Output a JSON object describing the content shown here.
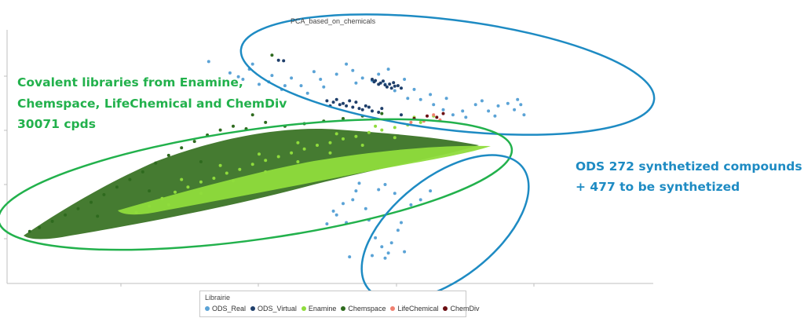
{
  "chart_data": {
    "type": "scatter",
    "title": "PCA_based_on_chemicals",
    "xlabel": "",
    "ylabel": "",
    "xlim": [
      0,
      100
    ],
    "ylim": [
      0,
      100
    ],
    "grid": false,
    "legend": {
      "title": "Librairie",
      "placement": "bottom-center"
    },
    "series": [
      {
        "name": "ODS_Real",
        "color": "#5ba3d6",
        "points": [
          [
            31.2,
            87.5
          ],
          [
            34.5,
            83.0
          ],
          [
            35.8,
            81.5
          ],
          [
            36.5,
            80.5
          ],
          [
            39.0,
            78.5
          ],
          [
            40.5,
            79.5
          ],
          [
            42.5,
            76.5
          ],
          [
            44.0,
            81.0
          ],
          [
            45.5,
            78.0
          ],
          [
            47.5,
            83.5
          ],
          [
            49.0,
            77.5
          ],
          [
            51.0,
            82.5
          ],
          [
            52.5,
            86.5
          ],
          [
            53.5,
            84.0
          ],
          [
            55.0,
            81.0
          ],
          [
            56.5,
            80.0
          ],
          [
            58.5,
            78.5
          ],
          [
            60.0,
            76.0
          ],
          [
            62.0,
            73.0
          ],
          [
            64.0,
            72.5
          ],
          [
            66.0,
            70.5
          ],
          [
            67.5,
            68.5
          ],
          [
            69.0,
            66.5
          ],
          [
            70.5,
            68.0
          ],
          [
            72.5,
            70.5
          ],
          [
            74.5,
            68.0
          ],
          [
            76.0,
            70.0
          ],
          [
            77.5,
            71.0
          ],
          [
            78.5,
            68.5
          ],
          [
            79.5,
            70.5
          ],
          [
            80.0,
            66.5
          ],
          [
            79.0,
            72.5
          ],
          [
            37.5,
            84.5
          ],
          [
            41.0,
            82.0
          ],
          [
            38.0,
            86.5
          ],
          [
            46.5,
            75.0
          ],
          [
            59.0,
            84.5
          ],
          [
            61.5,
            80.5
          ],
          [
            63.0,
            76.5
          ],
          [
            65.5,
            74.5
          ],
          [
            68.0,
            73.0
          ],
          [
            73.5,
            72.0
          ],
          [
            57.5,
            82.5
          ],
          [
            54.0,
            79.0
          ],
          [
            48.5,
            80.5
          ],
          [
            43.0,
            78.0
          ],
          [
            75.5,
            66.0
          ],
          [
            71.0,
            65.5
          ],
          [
            54.5,
            39.5
          ],
          [
            57.5,
            37.0
          ],
          [
            58.5,
            39.0
          ],
          [
            60.0,
            35.5
          ],
          [
            62.5,
            31.0
          ],
          [
            64.0,
            33.0
          ],
          [
            65.5,
            36.5
          ],
          [
            49.5,
            23.5
          ],
          [
            51.0,
            27.0
          ],
          [
            52.5,
            24.0
          ],
          [
            53.5,
            33.0
          ],
          [
            55.5,
            29.5
          ],
          [
            56.0,
            25.0
          ],
          [
            57.0,
            18.0
          ],
          [
            58.0,
            14.5
          ],
          [
            59.5,
            16.0
          ],
          [
            60.5,
            21.0
          ],
          [
            61.0,
            24.0
          ],
          [
            59.0,
            12.0
          ],
          [
            56.5,
            11.0
          ],
          [
            53.0,
            10.5
          ],
          [
            50.5,
            28.5
          ],
          [
            52.0,
            31.5
          ],
          [
            54.0,
            36.5
          ],
          [
            61.5,
            12.5
          ],
          [
            58.5,
            10.0
          ]
        ]
      },
      {
        "name": "ODS_Virtual",
        "color": "#1f3f6b",
        "points": [
          [
            57.0,
            80.0
          ],
          [
            57.8,
            79.0
          ],
          [
            58.5,
            78.3
          ],
          [
            59.2,
            78.6
          ],
          [
            60.0,
            77.8
          ],
          [
            59.5,
            77.0
          ],
          [
            58.2,
            79.8
          ],
          [
            57.5,
            78.5
          ],
          [
            60.5,
            78.0
          ],
          [
            56.8,
            79.5
          ],
          [
            58.8,
            77.5
          ],
          [
            59.8,
            79.2
          ],
          [
            61.0,
            77.0
          ],
          [
            56.5,
            80.5
          ],
          [
            49.5,
            72.0
          ],
          [
            50.5,
            71.5
          ],
          [
            51.5,
            70.5
          ],
          [
            52.5,
            70.0
          ],
          [
            53.5,
            69.5
          ],
          [
            54.5,
            69.0
          ],
          [
            55.5,
            70.0
          ],
          [
            56.5,
            68.0
          ],
          [
            57.5,
            67.5
          ],
          [
            51.0,
            72.5
          ],
          [
            52.0,
            71.0
          ],
          [
            54.0,
            71.5
          ],
          [
            55.0,
            68.5
          ],
          [
            53.0,
            72.0
          ],
          [
            56.0,
            69.5
          ],
          [
            50.0,
            70.0
          ],
          [
            58.0,
            69.0
          ],
          [
            61.0,
            66.5
          ],
          [
            42.0,
            88.0
          ],
          [
            42.8,
            87.8
          ]
        ]
      },
      {
        "name": "Enamine",
        "color": "#8fdc3c",
        "points": [
          [
            22.0,
            30.5
          ],
          [
            24.0,
            33.5
          ],
          [
            26.0,
            36.0
          ],
          [
            28.0,
            38.0
          ],
          [
            30.0,
            40.0
          ],
          [
            32.0,
            41.5
          ],
          [
            34.0,
            43.5
          ],
          [
            36.0,
            45.0
          ],
          [
            38.0,
            47.0
          ],
          [
            40.0,
            48.5
          ],
          [
            42.0,
            50.0
          ],
          [
            44.0,
            51.5
          ],
          [
            46.0,
            53.0
          ],
          [
            48.0,
            54.5
          ],
          [
            50.0,
            55.5
          ],
          [
            52.0,
            57.0
          ],
          [
            54.0,
            58.0
          ],
          [
            56.0,
            59.5
          ],
          [
            58.0,
            60.5
          ],
          [
            60.0,
            61.5
          ],
          [
            62.0,
            62.5
          ],
          [
            64.0,
            63.5
          ],
          [
            20.0,
            28.0
          ],
          [
            25.0,
            31.0
          ],
          [
            30.0,
            35.5
          ],
          [
            35.0,
            40.5
          ],
          [
            40.0,
            44.0
          ],
          [
            45.0,
            48.0
          ],
          [
            50.0,
            51.5
          ],
          [
            55.0,
            54.5
          ],
          [
            60.0,
            57.5
          ],
          [
            27.0,
            41.0
          ],
          [
            33.0,
            46.5
          ],
          [
            39.0,
            51.0
          ],
          [
            45.0,
            55.5
          ],
          [
            51.0,
            59.0
          ],
          [
            57.0,
            62.0
          ],
          [
            63.0,
            65.5
          ],
          [
            66.0,
            66.0
          ]
        ]
      },
      {
        "name": "Chemspace",
        "color": "#2e6a1e",
        "points": [
          [
            3.5,
            20.5
          ],
          [
            5.0,
            22.0
          ],
          [
            7.0,
            24.5
          ],
          [
            9.0,
            27.0
          ],
          [
            11.0,
            29.5
          ],
          [
            13.0,
            32.0
          ],
          [
            15.0,
            35.0
          ],
          [
            17.0,
            38.0
          ],
          [
            19.0,
            41.0
          ],
          [
            21.0,
            44.0
          ],
          [
            23.0,
            47.5
          ],
          [
            25.0,
            50.5
          ],
          [
            27.0,
            53.5
          ],
          [
            29.0,
            56.0
          ],
          [
            31.0,
            58.5
          ],
          [
            33.0,
            60.5
          ],
          [
            35.0,
            62.0
          ],
          [
            37.0,
            61.0
          ],
          [
            40.0,
            63.5
          ],
          [
            43.0,
            62.0
          ],
          [
            46.0,
            63.0
          ],
          [
            49.0,
            64.0
          ],
          [
            52.0,
            65.0
          ],
          [
            55.0,
            66.0
          ],
          [
            58.0,
            67.0
          ],
          [
            38.0,
            66.5
          ],
          [
            30.0,
            48.0
          ],
          [
            22.0,
            36.5
          ],
          [
            14.0,
            26.5
          ],
          [
            41.0,
            90.0
          ]
        ]
      },
      {
        "name": "LifeChemical",
        "color": "#f08070",
        "points": [
          [
            64.5,
            64.0
          ],
          [
            66.0,
            66.5
          ],
          [
            67.0,
            64.5
          ],
          [
            62.5,
            63.5
          ]
        ]
      },
      {
        "name": "ChemDiv",
        "color": "#6b0e12",
        "points": [
          [
            63.0,
            65.0
          ],
          [
            65.0,
            66.0
          ],
          [
            66.5,
            65.5
          ],
          [
            67.5,
            67.0
          ]
        ]
      }
    ],
    "annotations": [
      {
        "text": [
          "Covalent libraries from Enamine,",
          "Chemspace, LifeChemical and ChemDiv",
          "30071 cpds"
        ],
        "color": "#22b14c"
      },
      {
        "text": [
          "ODS 272 synthetized compounds",
          "+ 477 to be synthetized"
        ],
        "color": "#1e8bc3"
      }
    ]
  }
}
